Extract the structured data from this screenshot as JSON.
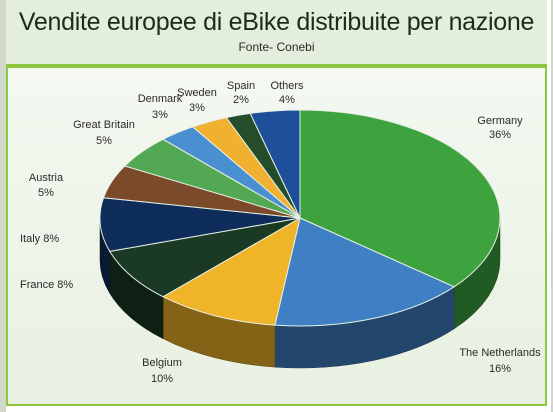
{
  "chart_data": {
    "type": "pie",
    "title": "Vendite europee di eBike distribuite per nazione",
    "subtitle": "Fonte- Conebi",
    "slices": [
      {
        "label": "Germany",
        "value": 36,
        "display": "36%",
        "color": "#3da33f"
      },
      {
        "label": "The Netherlands",
        "value": 16,
        "display": "16%",
        "color": "#3f7fc4"
      },
      {
        "label": "Belgium",
        "value": 10,
        "display": "10%",
        "color": "#f0b429"
      },
      {
        "label": "France",
        "value": 8,
        "display": "8%",
        "color": "#1a3a25"
      },
      {
        "label": "Italy",
        "value": 8,
        "display": "8%",
        "color": "#0f2d5a"
      },
      {
        "label": "Austria",
        "value": 5,
        "display": "5%",
        "color": "#7a4a2a"
      },
      {
        "label": "Great Britain",
        "value": 5,
        "display": "5%",
        "color": "#53a853"
      },
      {
        "label": "Denmark",
        "value": 3,
        "display": "3%",
        "color": "#4a90d0"
      },
      {
        "label": "Sweden",
        "value": 3,
        "display": "3%",
        "color": "#f0b030"
      },
      {
        "label": "Spain",
        "value": 2,
        "display": "2%",
        "color": "#254d2a"
      },
      {
        "label": "Others",
        "value": 4,
        "display": "4%",
        "color": "#1d4f9a"
      }
    ],
    "legend": "none",
    "style": "3d-pie"
  }
}
